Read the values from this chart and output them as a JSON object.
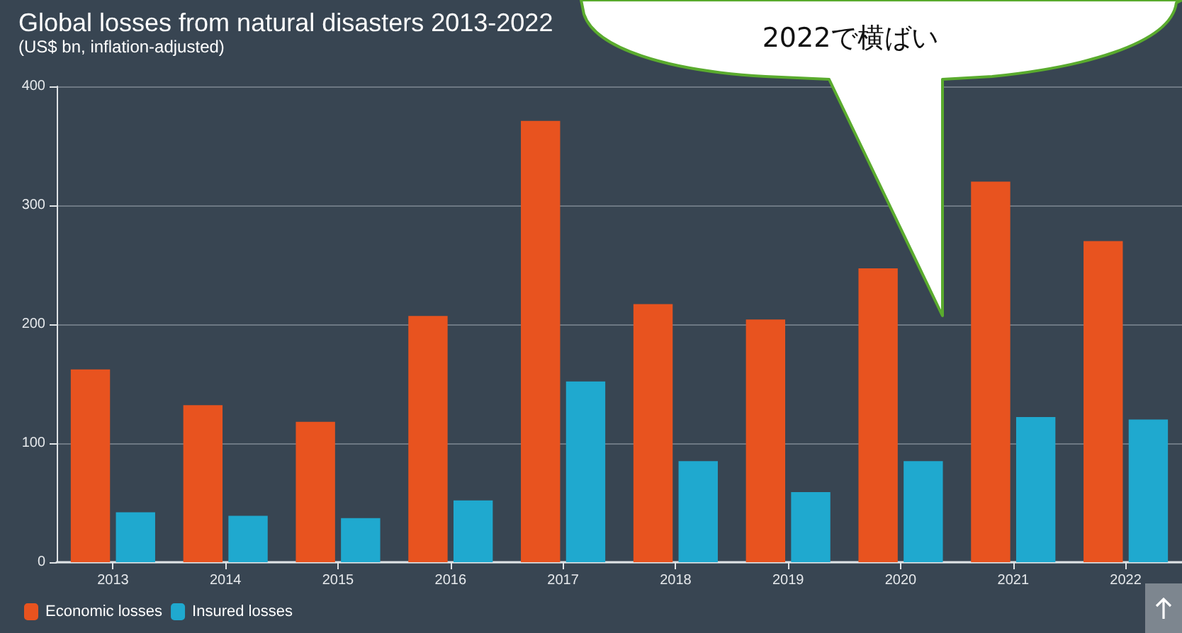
{
  "chart_data": {
    "type": "bar",
    "title": "Global losses from natural disasters 2013-2022",
    "subtitle": "(US$ bn, inflation-adjusted)",
    "categories": [
      "2013",
      "2014",
      "2015",
      "2016",
      "2017",
      "2018",
      "2019",
      "2020",
      "2021",
      "2022"
    ],
    "series": [
      {
        "name": "Economic losses",
        "color": "#e8531f",
        "values": [
          162,
          132,
          118,
          207,
          371,
          217,
          204,
          247,
          320,
          270
        ]
      },
      {
        "name": "Insured losses",
        "color": "#1fa9cf",
        "values": [
          42,
          39,
          37,
          52,
          152,
          85,
          59,
          85,
          122,
          120
        ]
      }
    ],
    "ylim": [
      0,
      400
    ],
    "yticks": [
      0,
      100,
      200,
      300,
      400
    ],
    "grid": "y",
    "legend": "bottom left",
    "annotations": [
      "2022で横ばい"
    ]
  }
}
